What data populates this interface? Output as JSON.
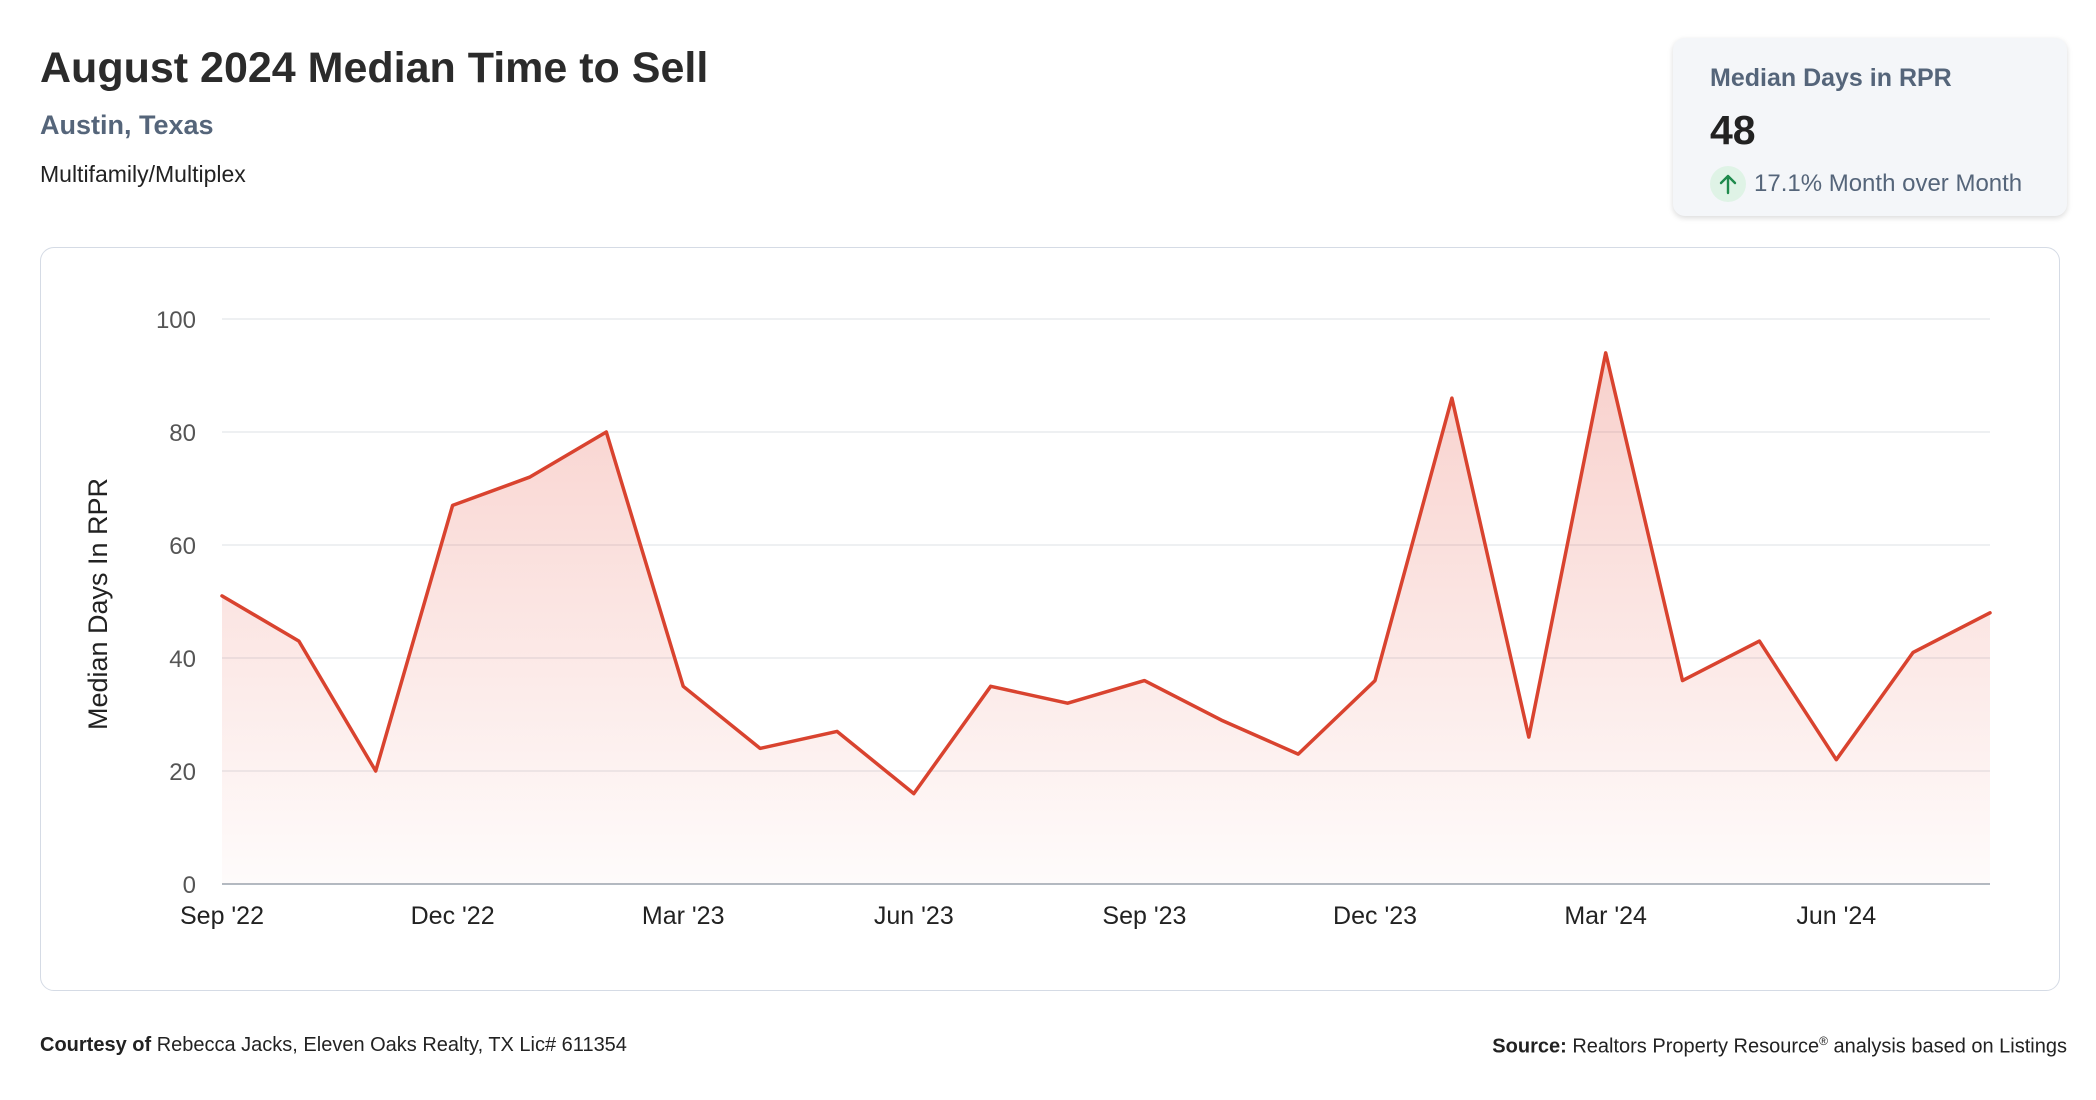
{
  "header": {
    "title": "August 2024 Median Time to Sell",
    "location": "Austin, Texas",
    "property_type": "Multifamily/Multiplex"
  },
  "stat_card": {
    "label": "Median Days in RPR",
    "value": "48",
    "change": "17.1% Month over Month",
    "icon": "arrow-up-icon"
  },
  "footer": {
    "courtesy_label": "Courtesy of",
    "courtesy_text": "Rebecca Jacks, Eleven Oaks Realty, TX Lic# 611354",
    "source_label": "Source:",
    "source_text": "Realtors Property Resource",
    "source_mark": "®",
    "source_suffix": "analysis based on Listings"
  },
  "chart_data": {
    "type": "area",
    "title": "",
    "xlabel": "",
    "ylabel": "Median Days In RPR",
    "ylim": [
      0,
      100
    ],
    "yticks": [
      0,
      20,
      40,
      60,
      80,
      100
    ],
    "x": [
      "Sep '22",
      "Oct '22",
      "Nov '22",
      "Dec '22",
      "Jan '23",
      "Feb '23",
      "Mar '23",
      "Apr '23",
      "May '23",
      "Jun '23",
      "Jul '23",
      "Aug '23",
      "Sep '23",
      "Oct '23",
      "Nov '23",
      "Dec '23",
      "Jan '24",
      "Feb '24",
      "Mar '24",
      "Apr '24",
      "May '24",
      "Jun '24",
      "Jul '24",
      "Aug '24"
    ],
    "xtick_labels": [
      "Sep '22",
      "Dec '22",
      "Mar '23",
      "Jun '23",
      "Sep '23",
      "Dec '23",
      "Mar '24",
      "Jun '24"
    ],
    "series": [
      {
        "values": [
          51,
          43,
          20,
          67,
          72,
          80,
          35,
          24,
          27,
          16,
          35,
          32,
          36,
          29,
          23,
          36,
          86,
          26,
          94,
          36,
          43,
          22,
          41,
          48
        ],
        "color": "#d9432f"
      }
    ],
    "grid": true,
    "legend": "none"
  }
}
